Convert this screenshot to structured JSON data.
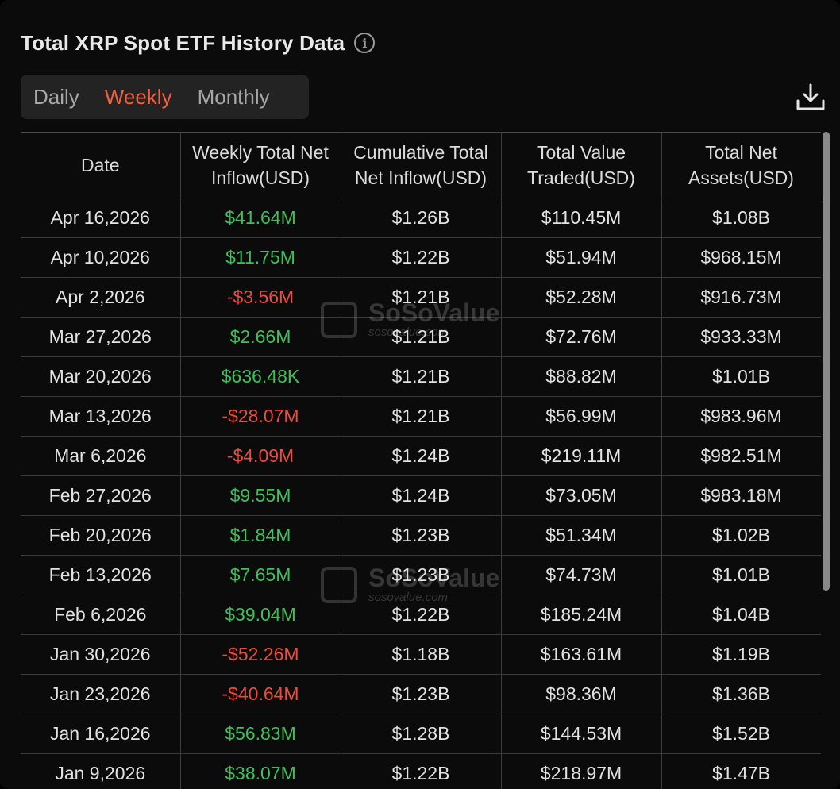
{
  "header": {
    "title": "Total XRP Spot ETF History Data",
    "info_glyph": "i"
  },
  "tabs": [
    {
      "label": "Daily",
      "active": false
    },
    {
      "label": "Weekly",
      "active": true
    },
    {
      "label": "Monthly",
      "active": false
    }
  ],
  "toolbar": {
    "download_icon": "download-icon"
  },
  "table": {
    "columns": [
      "Date",
      "Weekly Total Net Inflow(USD)",
      "Cumulative Total Net Inflow(USD)",
      "Total Value Traded(USD)",
      "Total Net Assets(USD)"
    ],
    "rows": [
      {
        "date": "Apr 16,2026",
        "inflow": "$41.64M",
        "dir": "pos",
        "cumulative": "$1.26B",
        "traded": "$110.45M",
        "assets": "$1.08B"
      },
      {
        "date": "Apr 10,2026",
        "inflow": "$11.75M",
        "dir": "pos",
        "cumulative": "$1.22B",
        "traded": "$51.94M",
        "assets": "$968.15M"
      },
      {
        "date": "Apr 2,2026",
        "inflow": "-$3.56M",
        "dir": "neg",
        "cumulative": "$1.21B",
        "traded": "$52.28M",
        "assets": "$916.73M"
      },
      {
        "date": "Mar 27,2026",
        "inflow": "$2.66M",
        "dir": "pos",
        "cumulative": "$1.21B",
        "traded": "$72.76M",
        "assets": "$933.33M"
      },
      {
        "date": "Mar 20,2026",
        "inflow": "$636.48K",
        "dir": "pos",
        "cumulative": "$1.21B",
        "traded": "$88.82M",
        "assets": "$1.01B"
      },
      {
        "date": "Mar 13,2026",
        "inflow": "-$28.07M",
        "dir": "neg",
        "cumulative": "$1.21B",
        "traded": "$56.99M",
        "assets": "$983.96M"
      },
      {
        "date": "Mar 6,2026",
        "inflow": "-$4.09M",
        "dir": "neg",
        "cumulative": "$1.24B",
        "traded": "$219.11M",
        "assets": "$982.51M"
      },
      {
        "date": "Feb 27,2026",
        "inflow": "$9.55M",
        "dir": "pos",
        "cumulative": "$1.24B",
        "traded": "$73.05M",
        "assets": "$983.18M"
      },
      {
        "date": "Feb 20,2026",
        "inflow": "$1.84M",
        "dir": "pos",
        "cumulative": "$1.23B",
        "traded": "$51.34M",
        "assets": "$1.02B"
      },
      {
        "date": "Feb 13,2026",
        "inflow": "$7.65M",
        "dir": "pos",
        "cumulative": "$1.23B",
        "traded": "$74.73M",
        "assets": "$1.01B"
      },
      {
        "date": "Feb 6,2026",
        "inflow": "$39.04M",
        "dir": "pos",
        "cumulative": "$1.22B",
        "traded": "$185.24M",
        "assets": "$1.04B"
      },
      {
        "date": "Jan 30,2026",
        "inflow": "-$52.26M",
        "dir": "neg",
        "cumulative": "$1.18B",
        "traded": "$163.61M",
        "assets": "$1.19B"
      },
      {
        "date": "Jan 23,2026",
        "inflow": "-$40.64M",
        "dir": "neg",
        "cumulative": "$1.23B",
        "traded": "$98.36M",
        "assets": "$1.36B"
      },
      {
        "date": "Jan 16,2026",
        "inflow": "$56.83M",
        "dir": "pos",
        "cumulative": "$1.28B",
        "traded": "$144.53M",
        "assets": "$1.52B"
      },
      {
        "date": "Jan 9,2026",
        "inflow": "$38.07M",
        "dir": "pos",
        "cumulative": "$1.22B",
        "traded": "$218.97M",
        "assets": "$1.47B"
      }
    ]
  },
  "watermark": {
    "brand": "SoSoValue",
    "url": "sosovalue.com"
  },
  "colors": {
    "accent": "#f0613f",
    "positive": "#3fbf5a",
    "negative": "#ee4b3b",
    "background": "#0b0b0b"
  }
}
